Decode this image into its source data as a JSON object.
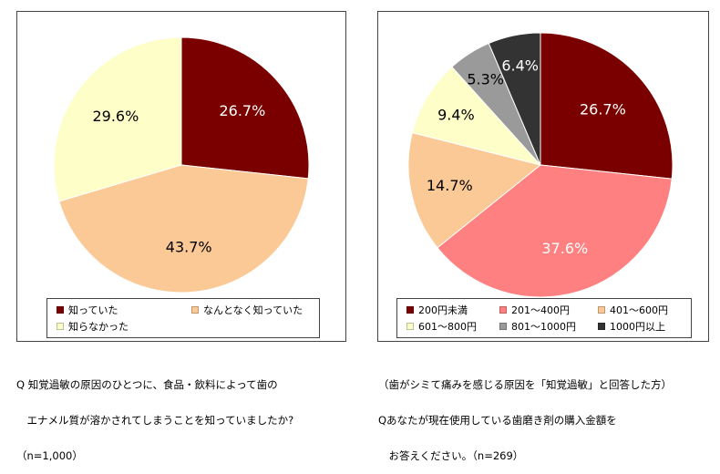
{
  "chart_data": [
    {
      "type": "pie",
      "categories": [
        "知っていた",
        "なんとなく知っていた",
        "知らなかった"
      ],
      "values": [
        26.7,
        43.7,
        29.6
      ],
      "value_labels": [
        "26.7%",
        "43.7%",
        "29.6%"
      ],
      "colors": [
        "#7a0000",
        "#fbc995",
        "#fefec8"
      ],
      "label_colors": [
        "#ffffff",
        "#000000",
        "#000000"
      ],
      "legend_position": "bottom",
      "question_lines": [
        "Q 知覚過敏の原因のひとつに、食品・飲料によって歯の",
        "　エナメル質が溶かされてしまうことを知っていましたか?"
      ],
      "n_label": "（n=1,000）"
    },
    {
      "type": "pie",
      "categories": [
        "200円未満",
        "201～400円",
        "401～600円",
        "601～800円",
        "801～1000円",
        "1000円以上"
      ],
      "values": [
        26.7,
        37.6,
        14.7,
        9.4,
        5.3,
        6.4
      ],
      "value_labels": [
        "26.7%",
        "37.6%",
        "14.7%",
        "9.4%",
        "5.3%",
        "6.4%"
      ],
      "colors": [
        "#7a0000",
        "#ff8080",
        "#fbc995",
        "#fefec8",
        "#9a9a9a",
        "#333333"
      ],
      "label_colors": [
        "#ffffff",
        "#ffffff",
        "#000000",
        "#000000",
        "#000000",
        "#ffffff"
      ],
      "legend_position": "bottom",
      "question_lines": [
        "（歯がシミて痛みを感じる原因を「知覚過敏」と回答した方）",
        "Qあなたが現在使用している歯磨き剤の購入金額を",
        "　お答えください。（n=269）"
      ]
    }
  ]
}
